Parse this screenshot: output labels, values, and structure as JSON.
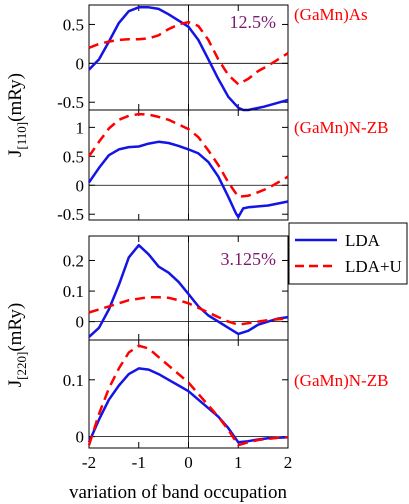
{
  "figure": {
    "shared_xlabel": "variation of band occupation",
    "group_ylabels": [
      {
        "main": "J",
        "sub": "[110]",
        "unit": "(mRy)"
      },
      {
        "main": "J",
        "sub": "[220]",
        "unit": "(mRy)"
      }
    ],
    "legend": {
      "entries": [
        {
          "name": "LDA",
          "color": "#1414e6",
          "dash": "solid"
        },
        {
          "name": "LDA+U",
          "color": "#ff0000",
          "dash": "dashed"
        }
      ]
    },
    "colors": {
      "lda": "#1414e6",
      "ldau": "#ff0000",
      "annotation": "#7a1a6e",
      "label": "#ff0000"
    }
  },
  "chart_data": [
    {
      "type": "line",
      "panel_label": "(GaMn)As",
      "annotation": "12.5%",
      "xlim": [
        -2,
        2
      ],
      "ylim": [
        -0.6,
        0.75
      ],
      "yticks": [
        -0.5,
        0,
        0.5
      ],
      "ytick_labels": [
        "-0.5",
        "0",
        "0.5"
      ],
      "grid": false,
      "series": [
        {
          "name": "LDA",
          "x": [
            -2,
            -1.8,
            -1.6,
            -1.4,
            -1.2,
            -1.0,
            -0.8,
            -0.6,
            -0.4,
            -0.2,
            0.0,
            0.2,
            0.4,
            0.6,
            0.8,
            1.0,
            1.1,
            1.2,
            1.5,
            2.0
          ],
          "y": [
            -0.08,
            0.05,
            0.28,
            0.52,
            0.67,
            0.72,
            0.72,
            0.7,
            0.63,
            0.55,
            0.47,
            0.3,
            0.05,
            -0.2,
            -0.43,
            -0.57,
            -0.6,
            -0.6,
            -0.56,
            -0.47
          ]
        },
        {
          "name": "LDA+U",
          "x": [
            -2,
            -1.8,
            -1.6,
            -1.4,
            -1.2,
            -1.0,
            -0.8,
            -0.6,
            -0.4,
            -0.2,
            0.0,
            0.2,
            0.4,
            0.6,
            0.8,
            1.0,
            1.2,
            1.4,
            1.6,
            1.8,
            2.0
          ],
          "y": [
            0.2,
            0.25,
            0.28,
            0.3,
            0.31,
            0.31,
            0.32,
            0.36,
            0.44,
            0.5,
            0.53,
            0.48,
            0.3,
            0.05,
            -0.15,
            -0.27,
            -0.2,
            -0.1,
            -0.03,
            0.05,
            0.13
          ]
        }
      ]
    },
    {
      "type": "line",
      "panel_label": "(GaMn)N-ZB",
      "annotation": "",
      "xlim": [
        -2,
        2
      ],
      "ylim": [
        -0.6,
        1.3
      ],
      "yticks": [
        -0.5,
        0,
        0.5,
        1
      ],
      "ytick_labels": [
        "-0.5",
        "0",
        "0.5",
        "1"
      ],
      "grid": false,
      "series": [
        {
          "name": "LDA",
          "x": [
            -2,
            -1.8,
            -1.6,
            -1.4,
            -1.2,
            -1.0,
            -0.8,
            -0.6,
            -0.4,
            -0.2,
            0.0,
            0.2,
            0.4,
            0.6,
            0.8,
            0.95,
            1.0,
            1.1,
            1.2,
            1.6,
            2.0
          ],
          "y": [
            0.05,
            0.3,
            0.52,
            0.62,
            0.66,
            0.67,
            0.72,
            0.75,
            0.73,
            0.68,
            0.62,
            0.55,
            0.4,
            0.15,
            -0.2,
            -0.48,
            -0.55,
            -0.4,
            -0.38,
            -0.35,
            -0.28
          ]
        },
        {
          "name": "LDA+U",
          "x": [
            -2,
            -1.8,
            -1.6,
            -1.4,
            -1.2,
            -1.0,
            -0.8,
            -0.6,
            -0.4,
            -0.2,
            0.0,
            0.2,
            0.4,
            0.6,
            0.8,
            1.0,
            1.2,
            1.4,
            1.6,
            1.8,
            2.0
          ],
          "y": [
            0.5,
            0.75,
            0.98,
            1.13,
            1.2,
            1.23,
            1.22,
            1.18,
            1.13,
            1.05,
            0.97,
            0.83,
            0.6,
            0.35,
            0.05,
            -0.2,
            -0.18,
            -0.12,
            -0.05,
            0.05,
            0.15
          ]
        }
      ]
    },
    {
      "type": "line",
      "panel_label": "(GaMn)As",
      "annotation": "3.125%",
      "xlim": [
        -2,
        2
      ],
      "ylim": [
        -0.06,
        0.28
      ],
      "yticks": [
        0,
        0.1,
        0.2
      ],
      "ytick_labels": [
        "0",
        "0.1",
        "0.2"
      ],
      "grid": false,
      "series": [
        {
          "name": "LDA",
          "x": [
            -2,
            -1.8,
            -1.6,
            -1.4,
            -1.2,
            -1.0,
            -0.8,
            -0.6,
            -0.4,
            -0.2,
            0.0,
            0.2,
            0.4,
            0.6,
            0.8,
            1.0,
            1.2,
            1.4,
            1.6,
            1.8,
            2.0
          ],
          "y": [
            -0.05,
            -0.02,
            0.04,
            0.12,
            0.21,
            0.25,
            0.22,
            0.18,
            0.16,
            0.13,
            0.09,
            0.05,
            0.02,
            0.0,
            -0.02,
            -0.04,
            -0.03,
            -0.01,
            0.0,
            0.01,
            0.015
          ]
        },
        {
          "name": "LDA+U",
          "x": [
            -2,
            -1.8,
            -1.6,
            -1.4,
            -1.2,
            -1.0,
            -0.8,
            -0.6,
            -0.4,
            -0.2,
            0.0,
            0.2,
            0.4,
            0.6,
            0.8,
            1.0,
            1.2,
            1.4,
            1.6,
            1.8,
            2.0
          ],
          "y": [
            0.03,
            0.04,
            0.05,
            0.06,
            0.07,
            0.075,
            0.08,
            0.08,
            0.078,
            0.07,
            0.06,
            0.045,
            0.03,
            0.015,
            0.0,
            -0.01,
            -0.005,
            0.0,
            0.005,
            0.008,
            0.01
          ]
        }
      ]
    },
    {
      "type": "line",
      "panel_label": "(GaMn)N-ZB",
      "annotation": "",
      "xlim": [
        -2,
        2
      ],
      "ylim": [
        -0.02,
        0.17
      ],
      "yticks": [
        0,
        0.1
      ],
      "ytick_labels": [
        "0",
        "0.1"
      ],
      "grid": false,
      "series": [
        {
          "name": "LDA",
          "x": [
            -2,
            -1.8,
            -1.6,
            -1.4,
            -1.2,
            -1.0,
            -0.8,
            -0.6,
            -0.4,
            -0.2,
            0.0,
            0.2,
            0.4,
            0.6,
            0.8,
            1.0,
            1.2,
            1.4,
            1.6,
            1.8,
            2.0
          ],
          "y": [
            -0.01,
            0.03,
            0.065,
            0.09,
            0.11,
            0.12,
            0.118,
            0.11,
            0.1,
            0.09,
            0.08,
            0.065,
            0.05,
            0.035,
            0.015,
            -0.01,
            -0.008,
            -0.005,
            -0.003,
            -0.002,
            -0.001
          ]
        },
        {
          "name": "LDA+U",
          "x": [
            -2,
            -1.8,
            -1.6,
            -1.4,
            -1.2,
            -1.0,
            -0.8,
            -0.6,
            -0.4,
            -0.2,
            0.0,
            0.2,
            0.4,
            0.6,
            0.8,
            1.0,
            1.2,
            1.4,
            1.6,
            1.8,
            2.0
          ],
          "y": [
            -0.015,
            0.04,
            0.085,
            0.12,
            0.148,
            0.16,
            0.155,
            0.14,
            0.125,
            0.11,
            0.095,
            0.075,
            0.055,
            0.035,
            0.012,
            -0.015,
            -0.01,
            -0.006,
            -0.004,
            -0.002,
            -0.001
          ]
        }
      ]
    }
  ]
}
